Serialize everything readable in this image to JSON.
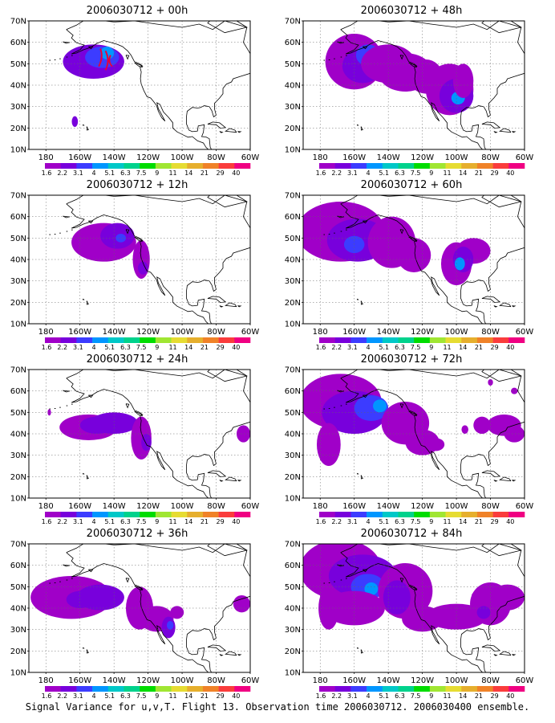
{
  "panels": [
    {
      "title": "2006030712 + 00h"
    },
    {
      "title": "2006030712 + 48h"
    },
    {
      "title": "2006030712 + 12h"
    },
    {
      "title": "2006030712 + 60h"
    },
    {
      "title": "2006030712 + 24h"
    },
    {
      "title": "2006030712 + 72h"
    },
    {
      "title": "2006030712 + 36h"
    },
    {
      "title": "2006030712 + 84h"
    }
  ],
  "lat_labels": [
    "70N",
    "60N",
    "50N",
    "40N",
    "30N",
    "20N",
    "10N"
  ],
  "lon_labels": [
    "180",
    "160W",
    "140W",
    "120W",
    "100W",
    "80W",
    "60W"
  ],
  "colorbar": {
    "levels": [
      "1.6",
      "2.2",
      "3.1",
      "4",
      "5.1",
      "6.3",
      "7.5",
      "9",
      "11",
      "14",
      "21",
      "29",
      "40"
    ],
    "colors": [
      "#a000c8",
      "#7800dc",
      "#3c3cff",
      "#0096ff",
      "#00c8c8",
      "#00d28c",
      "#00dc00",
      "#a0e632",
      "#e6dc32",
      "#e6af2d",
      "#f08228",
      "#fa3c3c",
      "#f00082"
    ]
  },
  "caption": "Signal Variance for u,v,T. Flight 13. Observation time 2006030712. 2006030400 ensemble."
}
